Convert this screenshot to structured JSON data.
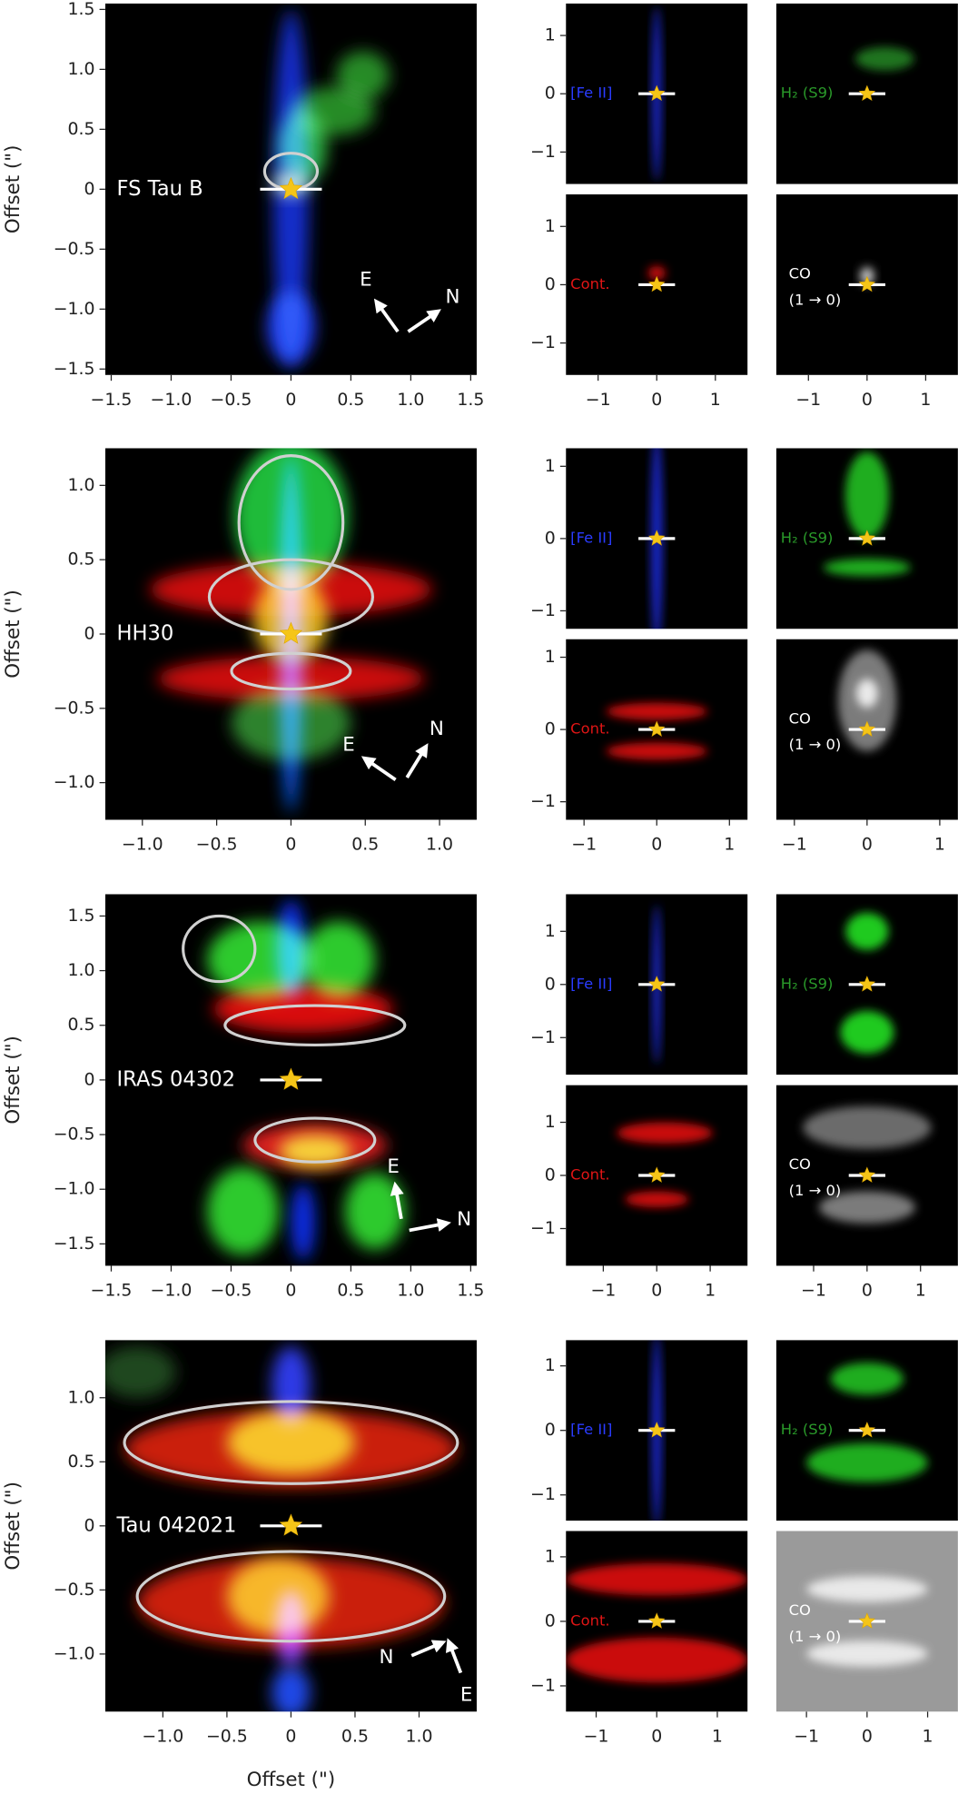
{
  "maps": [
    {
      "label": "[Fe II]",
      "color": "#2a3cff"
    },
    {
      "label": "H₂ (S9)",
      "color": "#2a9a2a"
    },
    {
      "label": "Cont.",
      "color": "#e01515"
    },
    {
      "label": [
        "CO",
        "(1 → 0)"
      ],
      "color": "#ffffff"
    }
  ],
  "chart_data": [
    {
      "type": "image",
      "title": "FS Tau B",
      "ylabel": "Offset (\")",
      "xlim": [
        -1.55,
        1.55
      ],
      "ylim": [
        -1.55,
        1.55
      ],
      "xticks": [
        {
          "value": -1.5,
          "label": "−1.5"
        },
        {
          "value": -1,
          "label": "−1.0"
        },
        {
          "value": -0.5,
          "label": "−0.5"
        },
        0,
        0.5,
        {
          "value": 1,
          "label": "1.0"
        },
        1.5
      ],
      "yticks": [
        {
          "value": -1.5,
          "label": "−1.5"
        },
        {
          "value": -1,
          "label": "−1.0"
        },
        {
          "value": -0.5,
          "label": "−0.5"
        },
        0,
        0.5,
        {
          "value": 1,
          "label": "1.0"
        },
        1.5
      ],
      "compass": [
        "E",
        "N"
      ],
      "small": {
        "xlim": [
          -1.55,
          1.55
        ],
        "ylim": [
          -1.55,
          1.55
        ],
        "xticks": [
          {
            "value": -1,
            "label": "−1"
          },
          0,
          1
        ],
        "yticks": [
          {
            "value": -1,
            "label": "−1"
          },
          0,
          1
        ]
      }
    },
    {
      "type": "image",
      "title": "HH30",
      "ylabel": "Offset (\")",
      "xlim": [
        -1.25,
        1.25
      ],
      "ylim": [
        -1.25,
        1.25
      ],
      "xticks": [
        {
          "value": -1,
          "label": "−1.0"
        },
        {
          "value": -0.5,
          "label": "−0.5"
        },
        0,
        0.5,
        {
          "value": 1,
          "label": "1.0"
        }
      ],
      "yticks": [
        {
          "value": -1,
          "label": "−1.0"
        },
        {
          "value": -0.5,
          "label": "−0.5"
        },
        0,
        0.5,
        {
          "value": 1,
          "label": "1.0"
        }
      ],
      "compass": [
        "E",
        "N"
      ],
      "small": {
        "xlim": [
          -1.25,
          1.25
        ],
        "ylim": [
          -1.25,
          1.25
        ],
        "xticks": [
          {
            "value": -1,
            "label": "−1"
          },
          0,
          1
        ],
        "yticks": [
          {
            "value": -1,
            "label": "−1"
          },
          0,
          1
        ]
      }
    },
    {
      "type": "image",
      "title": "IRAS 04302",
      "ylabel": "Offset (\")",
      "xlim": [
        -1.55,
        1.55
      ],
      "ylim": [
        -1.7,
        1.7
      ],
      "xticks": [
        {
          "value": -1.5,
          "label": "−1.5"
        },
        {
          "value": -1,
          "label": "−1.0"
        },
        {
          "value": -0.5,
          "label": "−0.5"
        },
        0,
        0.5,
        {
          "value": 1,
          "label": "1.0"
        },
        1.5
      ],
      "yticks": [
        {
          "value": -1.5,
          "label": "−1.5"
        },
        {
          "value": -1,
          "label": "−1.0"
        },
        {
          "value": -0.5,
          "label": "−0.5"
        },
        0,
        0.5,
        {
          "value": 1,
          "label": "1.0"
        },
        1.5
      ],
      "compass": [
        "E",
        "N"
      ],
      "small": {
        "xlim": [
          -1.7,
          1.7
        ],
        "ylim": [
          -1.7,
          1.7
        ],
        "xticks": [
          {
            "value": -1,
            "label": "−1"
          },
          0,
          1
        ],
        "yticks": [
          {
            "value": -1,
            "label": "−1"
          },
          0,
          1
        ]
      }
    },
    {
      "type": "image",
      "title": "Tau 042021",
      "ylabel": "Offset (\")",
      "xlabel": "Offset (\")",
      "xlim": [
        -1.45,
        1.45
      ],
      "ylim": [
        -1.45,
        1.45
      ],
      "xticks": [
        {
          "value": -1,
          "label": "−1.0"
        },
        {
          "value": -0.5,
          "label": "−0.5"
        },
        0,
        0.5,
        {
          "value": 1,
          "label": "1.0"
        }
      ],
      "yticks": [
        {
          "value": -1,
          "label": "−1.0"
        },
        {
          "value": -0.5,
          "label": "−0.5"
        },
        0,
        0.5,
        {
          "value": 1,
          "label": "1.0"
        }
      ],
      "compass": [
        "N",
        "E"
      ],
      "small": {
        "xlim": [
          -1.5,
          1.5
        ],
        "ylim": [
          -1.4,
          1.4
        ],
        "xticks": [
          {
            "value": -1,
            "label": "−1"
          },
          0,
          1
        ],
        "yticks": [
          {
            "value": -1,
            "label": "−1"
          },
          0,
          1
        ]
      }
    }
  ]
}
